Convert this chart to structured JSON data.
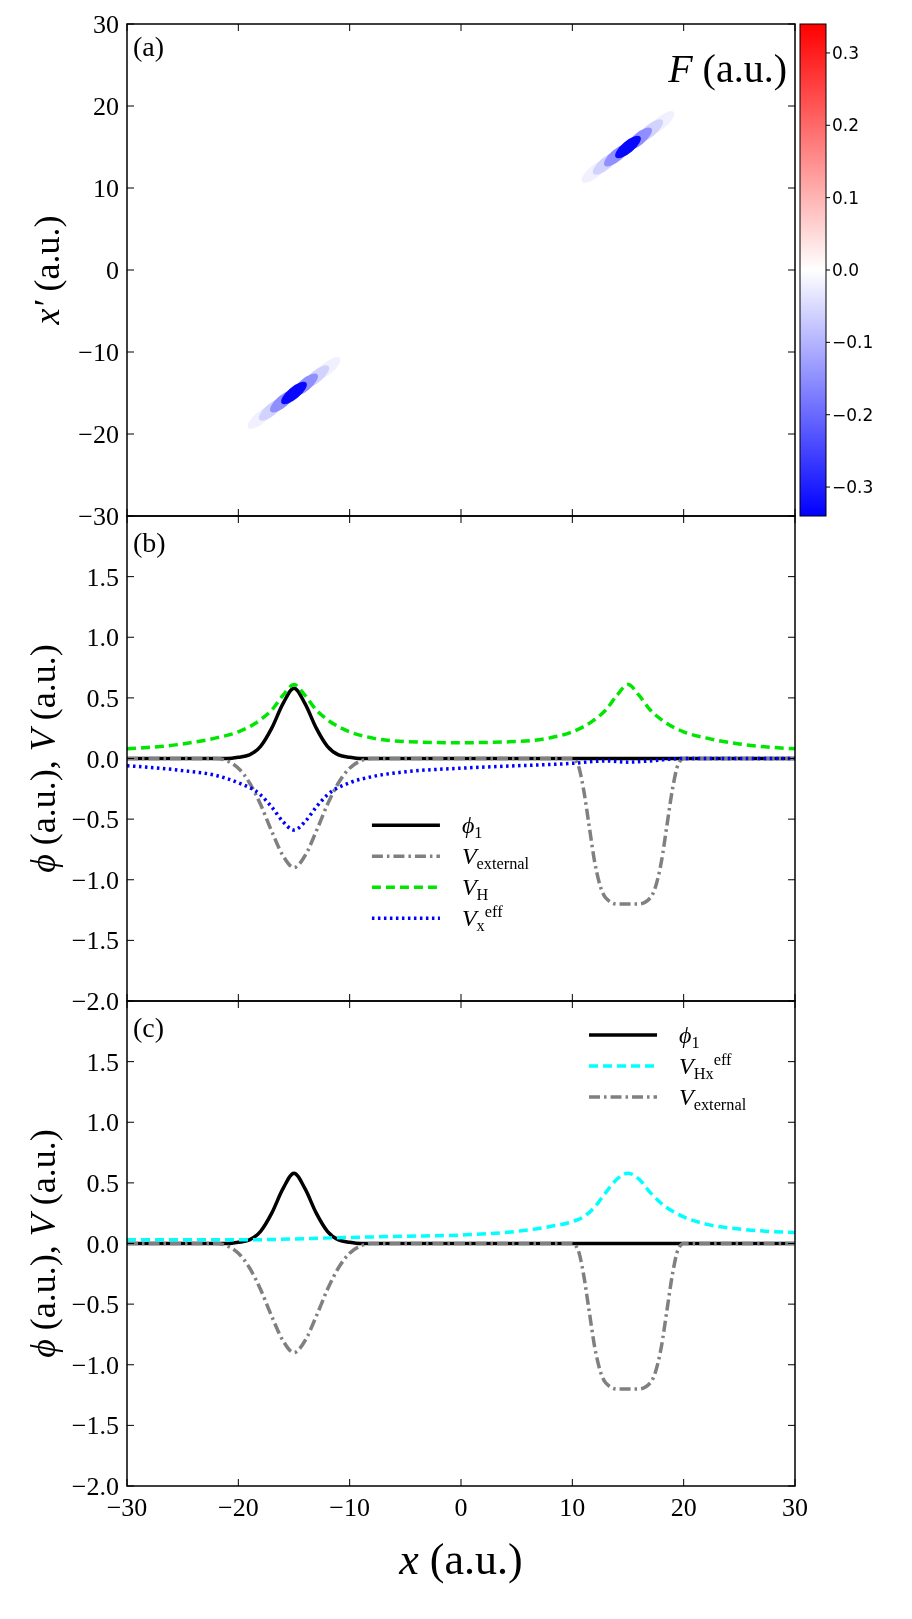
{
  "chart_data": [
    {
      "type": "scatter",
      "ylabel": "x′ (a.u.)",
      "clabel": "F (a.u.)",
      "annotations": [
        "(a)"
      ],
      "xlim": [
        -30,
        30
      ],
      "xticks": [
        -30,
        -20,
        -10,
        0,
        10,
        20,
        30
      ],
      "ylim": [
        -30,
        30
      ],
      "yticks": [
        {
          "value": -30,
          "label": "−30"
        },
        {
          "value": -20,
          "label": "−20"
        },
        {
          "value": -10,
          "label": "−10"
        },
        0,
        10,
        20,
        30
      ],
      "tick_labels": "y",
      "clim": [
        -0.34,
        0.34
      ],
      "cticks": [
        {
          "value": -0.3,
          "label": "−0.3"
        },
        {
          "value": -0.2,
          "label": "−0.2"
        },
        {
          "value": -0.1,
          "label": "−0.1"
        },
        {
          "value": 0,
          "label": "0.0"
        },
        0.1,
        0.2,
        0.3
      ],
      "marker": "circle",
      "x": [
        -18,
        -12,
        -17,
        -13,
        -16,
        -14,
        -15,
        18,
        12,
        17,
        13,
        16,
        14,
        15
      ],
      "values": [
        -18,
        -12,
        -17,
        -13,
        -16,
        -14,
        -15,
        18,
        12,
        17,
        13,
        16,
        14,
        15
      ],
      "cvalues": [
        -0.02,
        -0.02,
        -0.06,
        -0.06,
        -0.15,
        -0.15,
        -0.33,
        -0.02,
        -0.02,
        -0.06,
        -0.06,
        -0.15,
        -0.15,
        -0.33
      ]
    },
    {
      "type": "line",
      "ylabel": "ϕ (a.u.), V (a.u.)",
      "annotations": [
        "(b)"
      ],
      "xlim": [
        -30,
        30
      ],
      "xticks": [
        -30,
        -20,
        -10,
        0,
        10,
        20,
        30
      ],
      "ylim": [
        -2,
        2
      ],
      "yticks": [
        {
          "value": -2,
          "label": "−2.0"
        },
        {
          "value": -1.5,
          "label": "−1.5"
        },
        {
          "value": -1,
          "label": "−1.0"
        },
        {
          "value": -0.5,
          "label": "−0.5"
        },
        {
          "value": 0,
          "label": "0.0"
        },
        0.5,
        {
          "value": 1,
          "label": "1.0"
        },
        1.5
      ],
      "tick_labels": "y",
      "legend": "bottom",
      "series": [
        {
          "name": "ϕ$_{1}$",
          "color": "#000000",
          "line_style": "solid",
          "x": [
            -30,
            -25,
            -21,
            -20,
            -19,
            -18,
            -17,
            -16,
            -15,
            -14,
            -13,
            -12,
            -11,
            -10,
            -9,
            -5,
            0,
            10,
            20,
            30
          ],
          "values": [
            0,
            0,
            0,
            0.01,
            0.03,
            0.1,
            0.25,
            0.45,
            0.58,
            0.45,
            0.25,
            0.1,
            0.03,
            0.01,
            0,
            0,
            0,
            0,
            0,
            0
          ]
        },
        {
          "name": "V$_{external}$",
          "color": "#808080",
          "line_style": "dashdot",
          "x": [
            -30,
            -22,
            -21,
            -20,
            -19,
            -18,
            -17,
            -16,
            -15,
            -14,
            -13,
            -12,
            -11,
            -10,
            -9,
            -8,
            10,
            10.5,
            11,
            11.5,
            12,
            12.5,
            13,
            14,
            15,
            16,
            17,
            17.5,
            18,
            18.5,
            19,
            19.5,
            20,
            30
          ],
          "values": [
            0,
            0,
            -0.02,
            -0.08,
            -0.2,
            -0.38,
            -0.6,
            -0.8,
            -0.9,
            -0.8,
            -0.6,
            -0.38,
            -0.2,
            -0.08,
            -0.02,
            0,
            0,
            -0.05,
            -0.25,
            -0.55,
            -0.85,
            -1.05,
            -1.15,
            -1.2,
            -1.2,
            -1.2,
            -1.15,
            -1.05,
            -0.85,
            -0.55,
            -0.25,
            -0.05,
            0,
            0
          ]
        },
        {
          "name": "V$_{H}$",
          "color": "#00e600",
          "line_style": "dashed",
          "x": [
            -30,
            -25,
            -22,
            -20,
            -18,
            -17,
            -16,
            -15,
            -14,
            -13,
            -12,
            -10,
            -8,
            -5,
            0,
            5,
            8,
            10,
            12,
            13,
            14,
            15,
            16,
            17,
            18,
            20,
            22,
            25,
            30
          ],
          "values": [
            0.08,
            0.12,
            0.17,
            0.22,
            0.32,
            0.4,
            0.52,
            0.61,
            0.52,
            0.4,
            0.32,
            0.22,
            0.17,
            0.14,
            0.13,
            0.14,
            0.17,
            0.22,
            0.32,
            0.4,
            0.52,
            0.61,
            0.52,
            0.4,
            0.32,
            0.22,
            0.17,
            0.12,
            0.08
          ]
        },
        {
          "name": "V$_{x}$$^{eff}$",
          "color": "#0000ff",
          "line_style": "dotted",
          "x": [
            -30,
            -25,
            -22,
            -20,
            -18,
            -17,
            -16,
            -15,
            -14,
            -13,
            -12,
            -10,
            -8,
            -5,
            0,
            5,
            10,
            13,
            15,
            17,
            20,
            30
          ],
          "values": [
            -0.06,
            -0.1,
            -0.14,
            -0.2,
            -0.3,
            -0.4,
            -0.52,
            -0.59,
            -0.52,
            -0.4,
            -0.3,
            -0.2,
            -0.15,
            -0.11,
            -0.08,
            -0.06,
            -0.04,
            -0.02,
            -0.03,
            -0.02,
            0,
            0
          ]
        }
      ]
    },
    {
      "type": "line",
      "ylabel": "ϕ (a.u.), V (a.u.)",
      "xlabel": "x (a.u.)",
      "annotations": [
        "(c)"
      ],
      "xlim": [
        -30,
        30
      ],
      "xticks": [
        {
          "value": -30,
          "label": "−30"
        },
        {
          "value": -20,
          "label": "−20"
        },
        {
          "value": -10,
          "label": "−10"
        },
        0,
        10,
        20,
        30
      ],
      "ylim": [
        -2,
        2
      ],
      "yticks": [
        {
          "value": -2,
          "label": "−2.0"
        },
        {
          "value": -1.5,
          "label": "−1.5"
        },
        {
          "value": -1,
          "label": "−1.0"
        },
        {
          "value": -0.5,
          "label": "−0.5"
        },
        {
          "value": 0,
          "label": "0.0"
        },
        0.5,
        {
          "value": 1,
          "label": "1.0"
        },
        1.5
      ],
      "legend": "top right",
      "series": [
        {
          "name": "ϕ$_{1}$",
          "color": "#000000",
          "line_style": "solid",
          "x": [
            -30,
            -25,
            -21,
            -20,
            -19,
            -18,
            -17,
            -16,
            -15,
            -14,
            -13,
            -12,
            -11,
            -10,
            -9,
            -5,
            0,
            10,
            20,
            30
          ],
          "values": [
            0,
            0,
            0,
            0.01,
            0.03,
            0.1,
            0.25,
            0.45,
            0.58,
            0.45,
            0.25,
            0.1,
            0.03,
            0.01,
            0,
            0,
            0,
            0,
            0,
            0
          ]
        },
        {
          "name": "V$_{Hx}$$^{eff}$",
          "color": "#00ffff",
          "line_style": "dashed",
          "x": [
            -30,
            -20,
            -10,
            -5,
            0,
            5,
            8,
            10,
            11,
            12,
            13,
            14,
            15,
            16,
            17,
            18,
            20,
            22,
            25,
            30
          ],
          "values": [
            0.03,
            0.03,
            0.05,
            0.06,
            0.07,
            0.1,
            0.14,
            0.18,
            0.22,
            0.3,
            0.42,
            0.53,
            0.58,
            0.53,
            0.42,
            0.33,
            0.22,
            0.16,
            0.12,
            0.09
          ]
        },
        {
          "name": "V$_{external}$",
          "color": "#808080",
          "line_style": "dashdot",
          "x": [
            -30,
            -22,
            -21,
            -20,
            -19,
            -18,
            -17,
            -16,
            -15,
            -14,
            -13,
            -12,
            -11,
            -10,
            -9,
            -8,
            10,
            10.5,
            11,
            11.5,
            12,
            12.5,
            13,
            14,
            15,
            16,
            17,
            17.5,
            18,
            18.5,
            19,
            19.5,
            20,
            30
          ],
          "values": [
            0,
            0,
            -0.02,
            -0.08,
            -0.2,
            -0.38,
            -0.6,
            -0.8,
            -0.9,
            -0.8,
            -0.6,
            -0.38,
            -0.2,
            -0.08,
            -0.02,
            0,
            0,
            -0.05,
            -0.25,
            -0.55,
            -0.85,
            -1.05,
            -1.15,
            -1.2,
            -1.2,
            -1.2,
            -1.15,
            -1.05,
            -0.85,
            -0.55,
            -0.25,
            -0.05,
            0,
            0
          ]
        }
      ]
    }
  ]
}
